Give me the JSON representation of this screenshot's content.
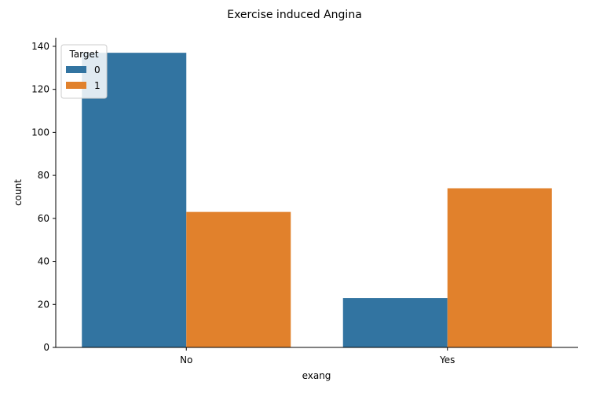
{
  "chart_data": {
    "type": "bar",
    "title": "Exercise induced Angina",
    "xlabel": "exang",
    "ylabel": "count",
    "categories": [
      "No",
      "Yes"
    ],
    "series": [
      {
        "name": "0",
        "values": [
          137,
          23
        ],
        "color": "#3274a1"
      },
      {
        "name": "1",
        "values": [
          63,
          74
        ],
        "color": "#e1812c"
      }
    ],
    "ylim": [
      0,
      144
    ],
    "yticks": [
      0,
      20,
      40,
      60,
      80,
      100,
      120,
      140
    ],
    "legend": {
      "title": "Target",
      "placement": "top-left"
    },
    "grid": false
  }
}
